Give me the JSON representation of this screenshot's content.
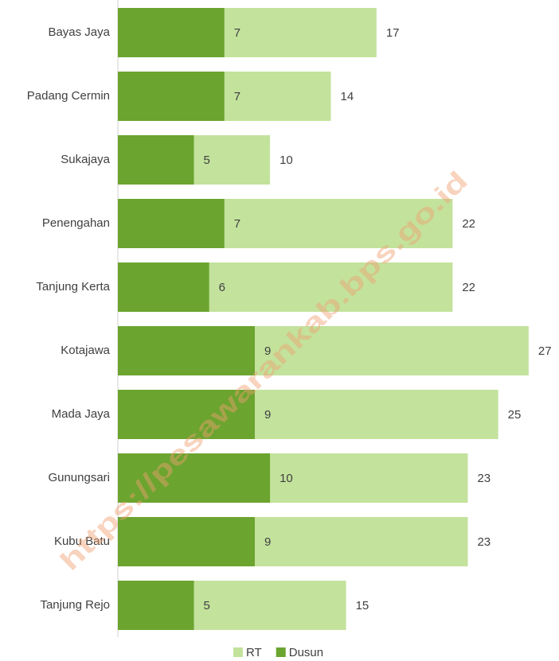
{
  "chart_data": {
    "type": "bar",
    "orientation": "horizontal",
    "overlap": true,
    "categories": [
      "Bayas Jaya",
      "Padang Cermin",
      "Sukajaya",
      "Penengahan",
      "Tanjung Kerta",
      "Kotajawa",
      "Mada Jaya",
      "Gunungsari",
      "Kubu Batu",
      "Tanjung Rejo"
    ],
    "series": [
      {
        "name": "RT",
        "color": "#c3e29c",
        "values": [
          17,
          14,
          10,
          22,
          22,
          27,
          25,
          23,
          23,
          15
        ]
      },
      {
        "name": "Dusun",
        "color": "#6ba42f",
        "values": [
          7,
          7,
          5,
          7,
          6,
          9,
          9,
          10,
          9,
          5
        ]
      }
    ],
    "xlim": [
      0,
      28
    ],
    "legend": "bottom",
    "watermark": "https://pesawarankab.bps.go.id"
  }
}
